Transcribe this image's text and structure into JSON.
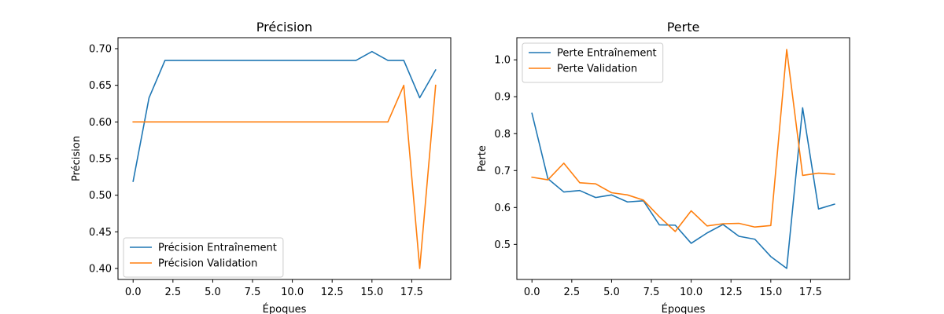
{
  "chart_data": [
    {
      "type": "line",
      "title": "Précision",
      "xlabel": "Époques",
      "ylabel": "Précision",
      "xlim": [
        -0.95,
        19.95
      ],
      "ylim": [
        0.385,
        0.715
      ],
      "xticks": [
        0.0,
        2.5,
        5.0,
        7.5,
        10.0,
        12.5,
        15.0,
        17.5
      ],
      "xtick_labels": [
        "0.0",
        "2.5",
        "5.0",
        "7.5",
        "10.0",
        "12.5",
        "15.0",
        "17.5"
      ],
      "yticks": [
        0.4,
        0.45,
        0.5,
        0.55,
        0.6,
        0.65,
        0.7
      ],
      "ytick_labels": [
        "0.40",
        "0.45",
        "0.50",
        "0.55",
        "0.60",
        "0.65",
        "0.70"
      ],
      "grid": false,
      "legend_position": "lower-left",
      "x": [
        0,
        1,
        2,
        3,
        4,
        5,
        6,
        7,
        8,
        9,
        10,
        11,
        12,
        13,
        14,
        15,
        16,
        17,
        18,
        19
      ],
      "series": [
        {
          "name": "Précision Entraînement",
          "color": "#1f77b4",
          "values": [
            0.519,
            0.633,
            0.684,
            0.684,
            0.684,
            0.684,
            0.684,
            0.684,
            0.684,
            0.684,
            0.684,
            0.684,
            0.684,
            0.684,
            0.684,
            0.696,
            0.684,
            0.684,
            0.633,
            0.671
          ]
        },
        {
          "name": "Précision Validation",
          "color": "#ff7f0e",
          "values": [
            0.6,
            0.6,
            0.6,
            0.6,
            0.6,
            0.6,
            0.6,
            0.6,
            0.6,
            0.6,
            0.6,
            0.6,
            0.6,
            0.6,
            0.6,
            0.6,
            0.6,
            0.65,
            0.4,
            0.65
          ]
        }
      ]
    },
    {
      "type": "line",
      "title": "Perte",
      "xlabel": "Époques",
      "ylabel": "Perte",
      "xlim": [
        -0.95,
        19.95
      ],
      "ylim": [
        0.405,
        1.06
      ],
      "xticks": [
        0.0,
        2.5,
        5.0,
        7.5,
        10.0,
        12.5,
        15.0,
        17.5
      ],
      "xtick_labels": [
        "0.0",
        "2.5",
        "5.0",
        "7.5",
        "10.0",
        "12.5",
        "15.0",
        "17.5"
      ],
      "yticks": [
        0.5,
        0.6,
        0.7,
        0.8,
        0.9,
        1.0
      ],
      "ytick_labels": [
        "0.5",
        "0.6",
        "0.7",
        "0.8",
        "0.9",
        "1.0"
      ],
      "grid": false,
      "legend_position": "upper-left",
      "x": [
        0,
        1,
        2,
        3,
        4,
        5,
        6,
        7,
        8,
        9,
        10,
        11,
        12,
        13,
        14,
        15,
        16,
        17,
        18,
        19
      ],
      "series": [
        {
          "name": "Perte Entraînement",
          "color": "#1f77b4",
          "values": [
            0.855,
            0.678,
            0.642,
            0.646,
            0.627,
            0.634,
            0.615,
            0.618,
            0.553,
            0.552,
            0.503,
            0.531,
            0.554,
            0.522,
            0.514,
            0.467,
            0.435,
            0.87,
            0.596,
            0.609
          ]
        },
        {
          "name": "Perte Validation",
          "color": "#ff7f0e",
          "values": [
            0.682,
            0.675,
            0.72,
            0.667,
            0.664,
            0.64,
            0.634,
            0.62,
            0.575,
            0.535,
            0.591,
            0.55,
            0.556,
            0.557,
            0.547,
            0.551,
            1.028,
            0.687,
            0.693,
            0.69
          ]
        }
      ]
    }
  ]
}
